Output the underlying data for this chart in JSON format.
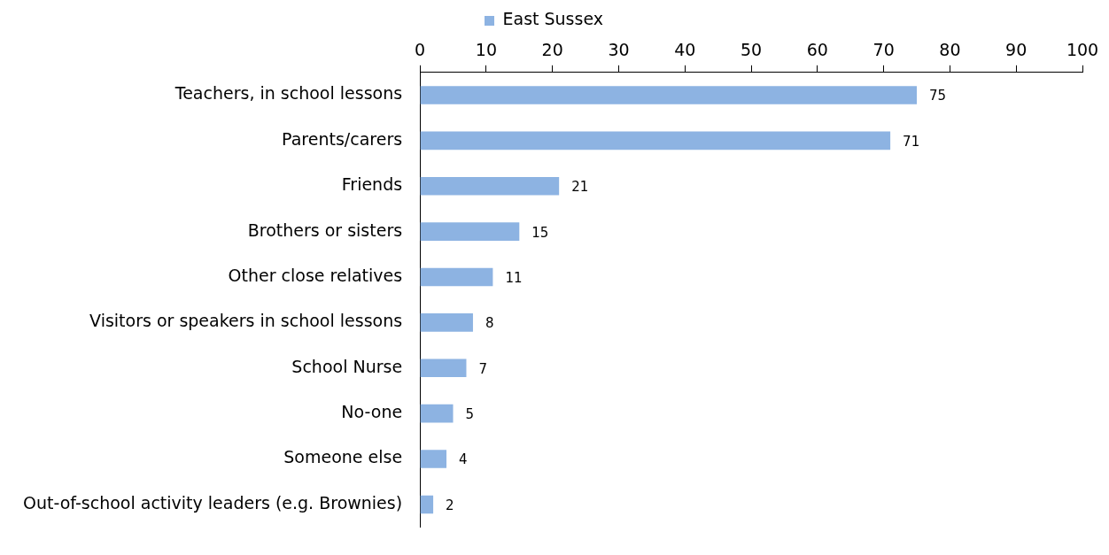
{
  "chart_data": {
    "type": "bar",
    "orientation": "horizontal",
    "categories": [
      "Teachers, in school lessons",
      "Parents/carers",
      "Friends",
      "Brothers or sisters",
      "Other close relatives",
      "Visitors or speakers in school lessons",
      "School Nurse",
      "No-one",
      "Someone else",
      "Out-of-school activity leaders (e.g. Brownies)"
    ],
    "series": [
      {
        "name": "East Sussex",
        "color": "#8db3e2",
        "values": [
          75,
          71,
          21,
          15,
          11,
          8,
          7,
          5,
          4,
          2
        ]
      }
    ],
    "xlim": [
      0,
      100
    ],
    "xticks": [
      0,
      10,
      20,
      30,
      40,
      50,
      60,
      70,
      80,
      90,
      100
    ],
    "grid": false,
    "legend": "top",
    "data_labels": true
  }
}
